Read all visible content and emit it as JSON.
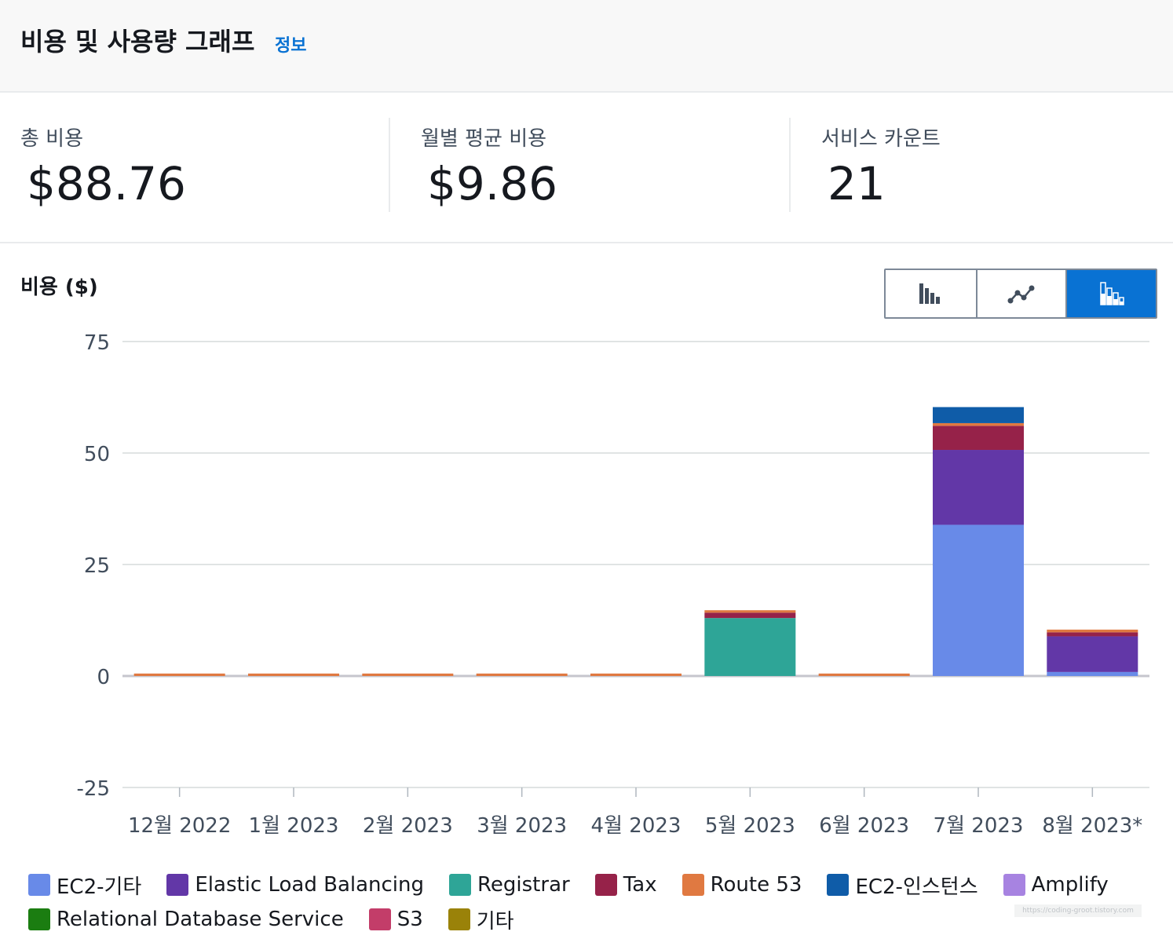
{
  "header": {
    "title": "비용 및 사용량 그래프",
    "info_link": "정보"
  },
  "summary": {
    "total": {
      "label": "총 비용",
      "value": "$88.76"
    },
    "monthly_avg": {
      "label": "월별 평균 비용",
      "value": "$9.86"
    },
    "service_count": {
      "label": "서비스 카운트",
      "value": "21"
    }
  },
  "chart_controls": [
    {
      "name": "bar-chart-view-button",
      "icon": "bar-chart-icon",
      "active": false
    },
    {
      "name": "line-chart-view-button",
      "icon": "line-chart-icon",
      "active": false
    },
    {
      "name": "stacked-bar-chart-view-button",
      "icon": "stacked-bar-chart-icon",
      "active": true
    }
  ],
  "chart_data": {
    "type": "bar",
    "stacked": true,
    "title": "비용 ($)",
    "xlabel": "",
    "ylabel": "비용 ($)",
    "ylim": [
      -25,
      75
    ],
    "yticks": [
      "75",
      "50",
      "25",
      "0",
      "-25"
    ],
    "ytick_values": [
      75,
      50,
      25,
      0,
      -25
    ],
    "categories": [
      "12월 2022",
      "1월 2023",
      "2월 2023",
      "3월 2023",
      "4월 2023",
      "5월 2023",
      "6월 2023",
      "7월 2023",
      "8월 2023*"
    ],
    "series": [
      {
        "name": "EC2-기타",
        "color": "#688ae8",
        "values": [
          0,
          0,
          0,
          0,
          0,
          0,
          0,
          33.9,
          0.9
        ]
      },
      {
        "name": "Elastic Load Balancing",
        "color": "#6237a7",
        "values": [
          0,
          0,
          0,
          0,
          0,
          0,
          0,
          16.8,
          8.0
        ]
      },
      {
        "name": "Registrar",
        "color": "#2ea597",
        "values": [
          0,
          0,
          0,
          0,
          0,
          13.0,
          0,
          0,
          0
        ]
      },
      {
        "name": "Tax",
        "color": "#962249",
        "values": [
          0,
          0,
          0,
          0,
          0,
          1.2,
          0,
          5.4,
          0.9
        ]
      },
      {
        "name": "Route 53",
        "color": "#e07941",
        "values": [
          0.55,
          0.55,
          0.55,
          0.55,
          0.55,
          0.55,
          0.55,
          0.6,
          0.6
        ]
      },
      {
        "name": "EC2-인스턴스",
        "color": "#0f5ca8",
        "values": [
          0,
          0,
          0,
          0,
          0,
          0,
          0,
          3.6,
          0
        ]
      },
      {
        "name": "Amplify",
        "color": "#a783e1",
        "values": [
          0,
          0,
          0,
          0,
          0,
          0,
          0,
          0,
          0
        ]
      },
      {
        "name": "Relational Database Service",
        "color": "#1b7d11",
        "values": [
          0,
          0,
          0,
          0,
          0,
          0,
          0,
          0,
          0
        ]
      },
      {
        "name": "S3",
        "color": "#c33d69",
        "values": [
          0,
          0,
          0,
          0,
          0,
          0,
          0,
          0,
          0
        ]
      },
      {
        "name": "기타",
        "color": "#9a8209",
        "values": [
          0,
          0,
          0,
          0,
          0,
          0,
          0,
          0,
          0
        ]
      }
    ],
    "legend_position": "bottom-left",
    "grid": true
  },
  "legend_rows": [
    [
      0,
      1,
      2,
      3,
      4,
      5,
      6
    ],
    [
      7,
      8,
      9
    ]
  ],
  "watermark": "https://coding-groot.tistory.com"
}
